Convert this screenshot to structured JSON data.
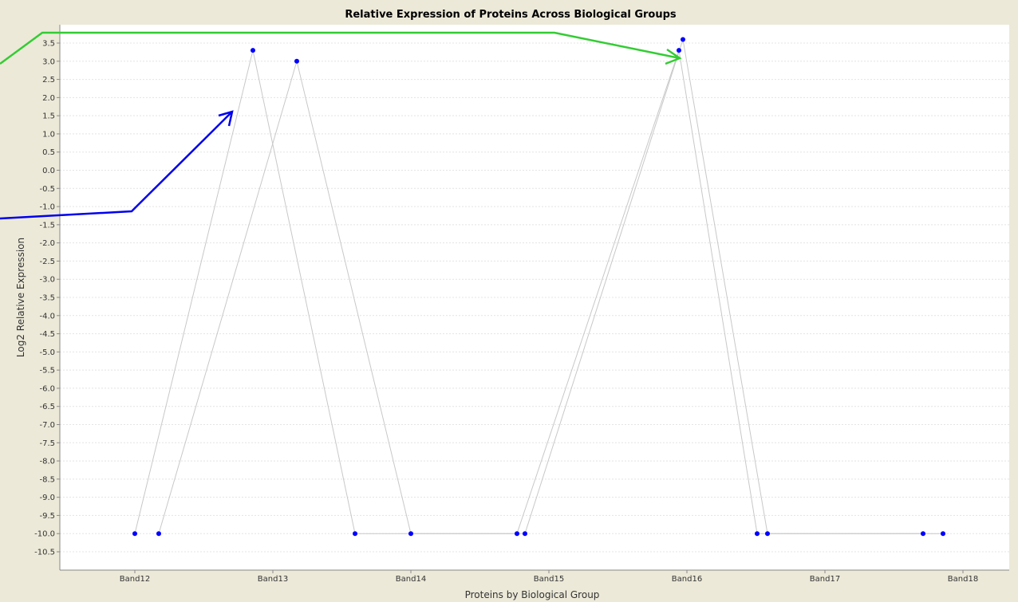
{
  "chart_data": {
    "type": "line",
    "title": "Relative Expression of Proteins Across Biological Groups",
    "xlabel": "Proteins by Biological Group",
    "ylabel": "Log2 Relative Expression",
    "categories": [
      "Band12",
      "Band13",
      "Band14",
      "Band15",
      "Band16",
      "Band17",
      "Band18"
    ],
    "ylim": [
      -10.5,
      3.75
    ],
    "yticks": [
      "3.5",
      "3.0",
      "2.5",
      "2.0",
      "1.5",
      "1.0",
      "0.5",
      "0.0",
      "-0.5",
      "-1.0",
      "-1.5",
      "-2.0",
      "-2.5",
      "-3.0",
      "-3.5",
      "-4.0",
      "-4.5",
      "-5.0",
      "-5.5",
      "-6.0",
      "-6.5",
      "-7.0",
      "-7.5",
      "-8.0",
      "-8.5",
      "-9.0",
      "-9.5",
      "-10.0",
      "-10.5"
    ],
    "grid": true,
    "series": [
      {
        "values": [
          -10.0,
          3.3,
          -10.0,
          -10.0,
          3.3,
          -10.0,
          -10.0
        ]
      },
      {
        "values": [
          -10.0,
          3.0,
          -10.0,
          -10.0,
          3.6,
          -10.0,
          -10.0
        ]
      }
    ],
    "point_color": "#0000ff",
    "line_color": "#c8c8c8",
    "annotations": [
      {
        "type": "arrow",
        "color": "#0000ee",
        "points_to": "Band13 peak"
      },
      {
        "type": "arrow",
        "color": "#33cc33",
        "points_to": "Band16 peak"
      }
    ]
  }
}
